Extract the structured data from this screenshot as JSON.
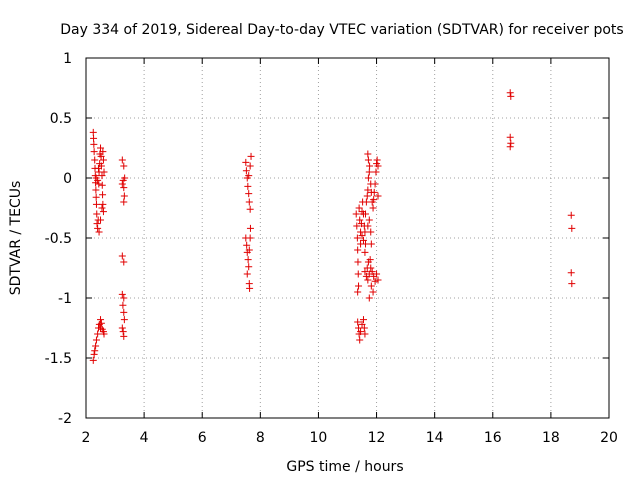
{
  "chart_data": {
    "type": "scatter",
    "title": "Day 334 of 2019, Sidereal Day-to-day VTEC variation (SDTVAR) for receiver pots",
    "xlabel": "GPS time / hours",
    "ylabel": "SDTVAR / TECUs",
    "xlim": [
      2,
      20
    ],
    "ylim": [
      -2,
      1
    ],
    "x_ticks": [
      2,
      4,
      6,
      8,
      10,
      12,
      14,
      16,
      18,
      20
    ],
    "x_tick_labels": [
      "2",
      "4",
      "6",
      "8",
      "10",
      "12",
      "14",
      "16",
      "18",
      "20"
    ],
    "y_ticks": [
      -2,
      -1.5,
      -1,
      -0.5,
      0,
      0.5,
      1
    ],
    "y_tick_labels": [
      "-2",
      "-1.5",
      "-1",
      "-0.5",
      "0",
      "0.5",
      "1"
    ],
    "grid": true,
    "marker": "+",
    "color": "#e00000",
    "series": [
      {
        "name": "SDTVAR",
        "points": [
          [
            2.25,
            0.38
          ],
          [
            2.26,
            0.33
          ],
          [
            2.27,
            0.28
          ],
          [
            2.28,
            0.22
          ],
          [
            2.3,
            0.15
          ],
          [
            2.31,
            0.08
          ],
          [
            2.32,
            0.02
          ],
          [
            2.33,
            -0.04
          ],
          [
            2.34,
            -0.1
          ],
          [
            2.35,
            -0.16
          ],
          [
            2.36,
            -0.22
          ],
          [
            2.37,
            -0.3
          ],
          [
            2.38,
            -0.38
          ],
          [
            2.4,
            -0.42
          ],
          [
            2.42,
            -0.35
          ],
          [
            2.44,
            -0.05
          ],
          [
            2.45,
            0.05
          ],
          [
            2.47,
            0.12
          ],
          [
            2.48,
            0.2
          ],
          [
            2.5,
            0.25
          ],
          [
            2.52,
            0.18
          ],
          [
            2.53,
            0.1
          ],
          [
            2.55,
            0.02
          ],
          [
            2.56,
            -0.06
          ],
          [
            2.57,
            -0.14
          ],
          [
            2.58,
            -0.22
          ],
          [
            2.6,
            -0.28
          ],
          [
            2.6,
            0.15
          ],
          [
            2.62,
            0.05
          ],
          [
            2.45,
            -0.45
          ],
          [
            2.5,
            -0.35
          ],
          [
            2.55,
            -0.25
          ],
          [
            2.35,
            0.0
          ],
          [
            2.4,
            -0.02
          ],
          [
            2.43,
            0.08
          ],
          [
            2.58,
            0.22
          ],
          [
            2.25,
            -1.52
          ],
          [
            2.28,
            -1.47
          ],
          [
            2.3,
            -1.44
          ],
          [
            2.33,
            -1.4
          ],
          [
            2.36,
            -1.35
          ],
          [
            2.4,
            -1.3
          ],
          [
            2.43,
            -1.25
          ],
          [
            2.46,
            -1.22
          ],
          [
            2.5,
            -1.18
          ],
          [
            2.53,
            -1.21
          ],
          [
            2.56,
            -1.26
          ],
          [
            2.6,
            -1.28
          ],
          [
            2.62,
            -1.3
          ],
          [
            2.5,
            -1.25
          ],
          [
            3.25,
            0.15
          ],
          [
            3.3,
            0.1
          ],
          [
            3.28,
            -0.02
          ],
          [
            3.3,
            -0.08
          ],
          [
            3.32,
            -0.15
          ],
          [
            3.3,
            -0.2
          ],
          [
            3.25,
            -0.05
          ],
          [
            3.33,
            0.0
          ],
          [
            3.25,
            -0.65
          ],
          [
            3.3,
            -0.7
          ],
          [
            3.25,
            -0.97
          ],
          [
            3.3,
            -1.0
          ],
          [
            3.27,
            -1.06
          ],
          [
            3.3,
            -1.12
          ],
          [
            3.32,
            -1.18
          ],
          [
            3.25,
            -1.25
          ],
          [
            3.28,
            -1.28
          ],
          [
            3.3,
            -1.32
          ],
          [
            7.5,
            0.13
          ],
          [
            7.52,
            0.06
          ],
          [
            7.55,
            0.0
          ],
          [
            7.57,
            -0.07
          ],
          [
            7.6,
            -0.13
          ],
          [
            7.62,
            -0.2
          ],
          [
            7.65,
            -0.26
          ],
          [
            7.68,
            0.18
          ],
          [
            7.65,
            0.1
          ],
          [
            7.6,
            0.02
          ],
          [
            7.5,
            -0.5
          ],
          [
            7.53,
            -0.56
          ],
          [
            7.55,
            -0.62
          ],
          [
            7.58,
            -0.68
          ],
          [
            7.6,
            -0.74
          ],
          [
            7.62,
            -0.6
          ],
          [
            7.65,
            -0.5
          ],
          [
            7.66,
            -0.42
          ],
          [
            7.55,
            -0.8
          ],
          [
            7.62,
            -0.88
          ],
          [
            7.63,
            -0.92
          ],
          [
            11.3,
            -0.3
          ],
          [
            11.32,
            -0.4
          ],
          [
            11.34,
            -0.5
          ],
          [
            11.35,
            -0.6
          ],
          [
            11.36,
            -0.7
          ],
          [
            11.37,
            -0.8
          ],
          [
            11.38,
            -0.9
          ],
          [
            11.35,
            -0.95
          ],
          [
            11.4,
            -0.25
          ],
          [
            11.42,
            -0.35
          ],
          [
            11.45,
            -0.45
          ],
          [
            11.48,
            -0.38
          ],
          [
            11.5,
            -0.28
          ],
          [
            11.52,
            -0.2
          ],
          [
            11.55,
            -0.3
          ],
          [
            11.58,
            -0.4
          ],
          [
            11.6,
            -0.45
          ],
          [
            11.62,
            -0.3
          ],
          [
            11.65,
            -0.2
          ],
          [
            11.68,
            -0.15
          ],
          [
            11.7,
            -0.1
          ],
          [
            11.72,
            0.0
          ],
          [
            11.75,
            0.05
          ],
          [
            11.7,
            0.2
          ],
          [
            11.72,
            0.15
          ],
          [
            11.76,
            0.1
          ],
          [
            11.8,
            -0.05
          ],
          [
            11.82,
            -0.12
          ],
          [
            11.85,
            -0.2
          ],
          [
            11.88,
            -0.25
          ],
          [
            11.9,
            -0.18
          ],
          [
            11.92,
            -0.12
          ],
          [
            11.95,
            -0.05
          ],
          [
            11.98,
            0.05
          ],
          [
            12.0,
            0.12
          ],
          [
            12.02,
            0.15
          ],
          [
            12.05,
            0.1
          ],
          [
            12.05,
            -0.15
          ],
          [
            11.45,
            -0.55
          ],
          [
            11.5,
            -0.48
          ],
          [
            11.55,
            -0.52
          ],
          [
            11.6,
            -0.62
          ],
          [
            11.62,
            -0.55
          ],
          [
            11.7,
            -0.4
          ],
          [
            11.75,
            -0.35
          ],
          [
            11.8,
            -0.45
          ],
          [
            11.82,
            -0.55
          ],
          [
            11.35,
            -1.2
          ],
          [
            11.38,
            -1.25
          ],
          [
            11.4,
            -1.3
          ],
          [
            11.42,
            -1.35
          ],
          [
            11.45,
            -1.28
          ],
          [
            11.5,
            -1.22
          ],
          [
            11.55,
            -1.18
          ],
          [
            11.58,
            -1.25
          ],
          [
            11.6,
            -1.3
          ],
          [
            11.6,
            -0.78
          ],
          [
            11.65,
            -0.82
          ],
          [
            11.7,
            -0.85
          ],
          [
            11.75,
            -0.8
          ],
          [
            11.8,
            -0.75
          ],
          [
            11.85,
            -0.78
          ],
          [
            11.9,
            -0.82
          ],
          [
            11.95,
            -0.86
          ],
          [
            12.0,
            -0.8
          ],
          [
            12.05,
            -0.85
          ],
          [
            11.68,
            -0.75
          ],
          [
            11.72,
            -0.7
          ],
          [
            11.78,
            -0.68
          ],
          [
            11.82,
            -0.9
          ],
          [
            11.88,
            -0.95
          ],
          [
            11.75,
            -1.0
          ],
          [
            16.6,
            0.71
          ],
          [
            16.62,
            0.68
          ],
          [
            16.6,
            0.34
          ],
          [
            16.62,
            0.29
          ],
          [
            16.6,
            0.26
          ],
          [
            18.7,
            -0.31
          ],
          [
            18.72,
            -0.42
          ],
          [
            18.7,
            -0.79
          ],
          [
            18.72,
            -0.88
          ]
        ]
      }
    ]
  }
}
